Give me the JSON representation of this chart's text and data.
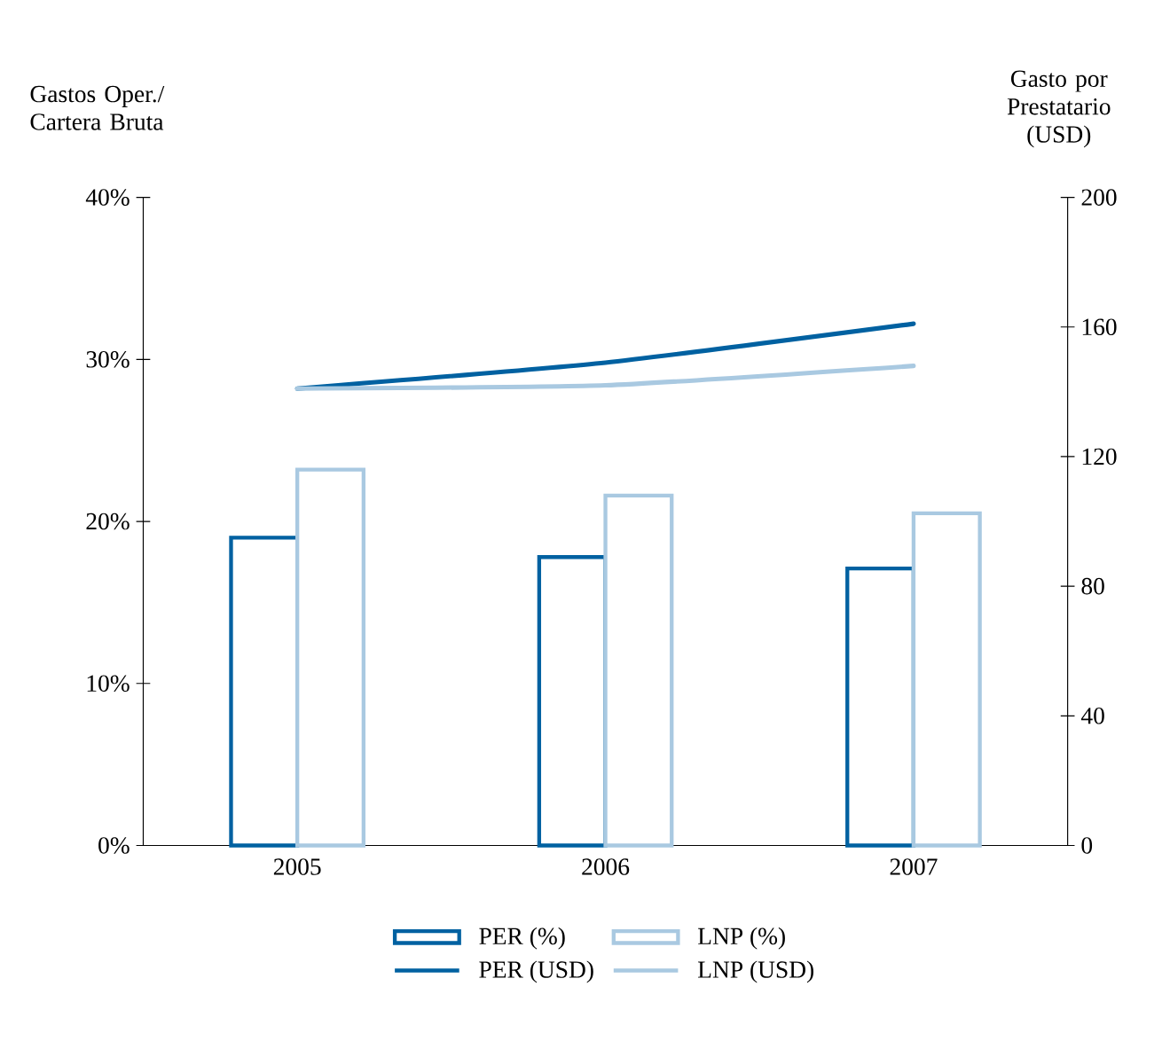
{
  "chart_data": {
    "type": "bar",
    "ylabel": "Gastos Oper./ Cartera Bruta",
    "y2label": "Gasto por Prestatario (USD)",
    "categories": [
      "2005",
      "2006",
      "2007"
    ],
    "series": [
      {
        "name": "PER (%)",
        "color": "#0061a1",
        "values": [
          19.0,
          17.8,
          17.1
        ]
      },
      {
        "name": "LNP (%)",
        "color": "#a9c9e1",
        "values": [
          23.2,
          21.6,
          20.5
        ]
      },
      {
        "name": "PER (USD)",
        "type": "line",
        "axis": "y2",
        "color": "#0061a1",
        "values": [
          141,
          149,
          161
        ]
      },
      {
        "name": "LNP (USD)",
        "type": "line",
        "axis": "y2",
        "color": "#a9c9e1",
        "values": [
          141,
          142,
          148
        ]
      }
    ],
    "ylim": [
      0,
      40
    ],
    "yticks": [
      {
        "value": 0,
        "label": "0%"
      },
      {
        "value": 10,
        "label": "10%"
      },
      {
        "value": 20,
        "label": "20%"
      },
      {
        "value": 30,
        "label": "30%"
      },
      {
        "value": 40,
        "label": "40%"
      }
    ],
    "y2lim": [
      0,
      200
    ],
    "y2ticks": [
      0,
      40,
      80,
      120,
      160,
      200
    ],
    "grid": false,
    "legend": "bottom",
    "marker": "none",
    "line_style": "solid"
  }
}
